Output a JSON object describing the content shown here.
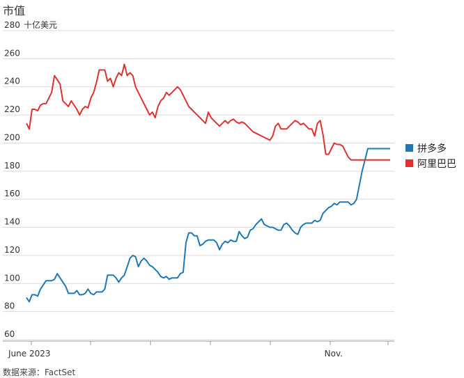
{
  "chart_data": {
    "type": "line",
    "title": "市值",
    "ylabel": "十亿美元",
    "source": "数据来源：FactSet",
    "ylim": [
      60,
      280
    ],
    "yticks": [
      60,
      80,
      100,
      120,
      140,
      160,
      180,
      200,
      220,
      240,
      260,
      280
    ],
    "xticks": [
      {
        "label": "June 2023",
        "x": 0
      },
      {
        "label": "Nov.",
        "x": 109
      }
    ],
    "x_range": [
      0,
      130
    ],
    "series": [
      {
        "name": "拼多多",
        "color": "#1f78b4",
        "x": [
          0,
          1,
          2,
          3,
          4,
          5,
          6,
          7,
          8,
          9,
          10,
          11,
          12,
          13,
          14,
          15,
          16,
          17,
          18,
          19,
          20,
          21,
          22,
          23,
          24,
          25,
          26,
          27,
          28,
          29,
          30,
          31,
          32,
          33,
          34,
          35,
          36,
          37,
          38,
          39,
          40,
          41,
          42,
          43,
          44,
          45,
          46,
          47,
          48,
          49,
          50,
          51,
          52,
          53,
          54,
          55,
          56,
          57,
          58,
          59,
          60,
          61,
          62,
          63,
          64,
          65,
          66,
          67,
          68,
          69,
          70,
          71,
          72,
          73,
          74,
          75,
          76,
          77,
          78,
          79,
          80,
          81,
          82,
          83,
          84,
          85,
          86,
          87,
          88,
          89,
          90,
          91,
          92,
          93,
          94,
          95,
          96,
          97,
          98,
          99,
          100,
          101,
          102,
          103,
          104,
          105,
          106,
          107,
          108,
          109,
          110,
          111,
          112,
          113,
          114,
          115,
          116,
          117,
          118,
          119,
          120,
          121,
          122,
          123,
          124,
          125,
          126,
          127,
          128,
          129,
          130
        ],
        "values": [
          90,
          87,
          92,
          92,
          91,
          96,
          99,
          102,
          102,
          102,
          103,
          107,
          104,
          101,
          98,
          93,
          93,
          93,
          95,
          92,
          92,
          93,
          96,
          93,
          92,
          94,
          94,
          94,
          96,
          106,
          106,
          106,
          104,
          101,
          104,
          106,
          112,
          118,
          120,
          119,
          112,
          116,
          118,
          116,
          113,
          112,
          110,
          108,
          105,
          104,
          105,
          103,
          104,
          104,
          104,
          107,
          108,
          129,
          136,
          136,
          134,
          134,
          127,
          128,
          130,
          131,
          131,
          131,
          129,
          124,
          128,
          130,
          129,
          131,
          130,
          130,
          137,
          134,
          132,
          133,
          138,
          139,
          142,
          144,
          146,
          142,
          141,
          140,
          140,
          139,
          138,
          138,
          142,
          143,
          141,
          138,
          136,
          135,
          140,
          142,
          143,
          143,
          143,
          145,
          144,
          145,
          150,
          152,
          154,
          155,
          157,
          156,
          158,
          158,
          158,
          158,
          156,
          157,
          160,
          170,
          180,
          188,
          196,
          196,
          196,
          196,
          196,
          196,
          196,
          196,
          196
        ]
      },
      {
        "name": "阿里巴巴",
        "color": "#e03131",
        "x": [
          0,
          1,
          2,
          3,
          4,
          5,
          6,
          7,
          8,
          9,
          10,
          11,
          12,
          13,
          14,
          15,
          16,
          17,
          18,
          19,
          20,
          21,
          22,
          23,
          24,
          25,
          26,
          27,
          28,
          29,
          30,
          31,
          32,
          33,
          34,
          35,
          36,
          37,
          38,
          39,
          40,
          41,
          42,
          43,
          44,
          45,
          46,
          47,
          48,
          49,
          50,
          51,
          52,
          53,
          54,
          55,
          56,
          57,
          58,
          59,
          60,
          61,
          62,
          63,
          64,
          65,
          66,
          67,
          68,
          69,
          70,
          71,
          72,
          73,
          74,
          75,
          76,
          77,
          78,
          79,
          80,
          81,
          82,
          83,
          84,
          85,
          86,
          87,
          88,
          89,
          90,
          91,
          92,
          93,
          94,
          95,
          96,
          97,
          98,
          99,
          100,
          101,
          102,
          103,
          104,
          105,
          106,
          107,
          108,
          109,
          110,
          111,
          112,
          113,
          114,
          115,
          116,
          117,
          118,
          119,
          120,
          121,
          122,
          123,
          124,
          125,
          126,
          127,
          128,
          129,
          130
        ],
        "values": [
          214,
          210,
          224,
          224,
          223,
          227,
          228,
          228,
          232,
          236,
          248,
          245,
          242,
          230,
          228,
          226,
          230,
          227,
          224,
          220,
          224,
          226,
          225,
          232,
          236,
          243,
          252,
          252,
          252,
          244,
          246,
          240,
          246,
          250,
          248,
          256,
          248,
          250,
          248,
          240,
          236,
          232,
          228,
          224,
          220,
          222,
          218,
          226,
          230,
          232,
          236,
          234,
          236,
          238,
          240,
          238,
          234,
          230,
          226,
          224,
          222,
          220,
          218,
          216,
          214,
          222,
          218,
          216,
          214,
          212,
          214,
          216,
          214,
          216,
          217,
          215,
          214,
          215,
          214,
          212,
          210,
          208,
          207,
          206,
          205,
          204,
          203,
          202,
          205,
          212,
          214,
          210,
          210,
          210,
          212,
          214,
          216,
          215,
          213,
          214,
          212,
          210,
          210,
          205,
          214,
          216,
          206,
          192,
          192,
          196,
          200,
          199,
          199,
          198,
          194,
          190,
          188,
          188,
          188,
          188,
          188,
          188,
          188,
          188,
          188,
          188,
          188,
          188,
          188,
          188,
          188
        ]
      }
    ],
    "legend": [
      "拼多多",
      "阿里巴巴"
    ],
    "grid": true
  }
}
